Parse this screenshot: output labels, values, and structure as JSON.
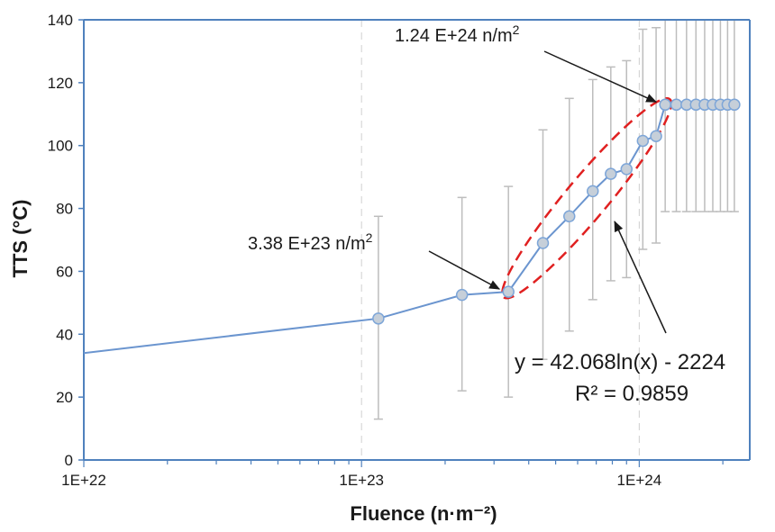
{
  "chart_data": {
    "type": "line",
    "xscale": "log",
    "xlim": [
      "1E+22",
      "2.5E+24"
    ],
    "ylim": [
      0,
      140
    ],
    "xlabel": "Fluence (n·m⁻²)",
    "ylabel": "TTS (°C)",
    "xticks": [
      "1E+22",
      "1E+23",
      "1E+24"
    ],
    "yticks": [
      0,
      20,
      40,
      60,
      80,
      100,
      120,
      140
    ],
    "grid": "vertical dashed at decades",
    "colors": {
      "line": "#6b95cf",
      "marker_fill": "#c6cfd9",
      "marker_edge": "#7ea6d8",
      "error_bar": "#bdbdbd",
      "ellipse": "#e02020",
      "axis": "#4f81bd"
    },
    "series": [
      {
        "x": [
          "1E+22",
          "1.15E+23",
          "2.3E+23",
          "3.38E+23",
          "4.5E+23",
          "5.6E+23",
          "6.8E+23",
          "7.9E+23",
          "9.0E+23",
          "1.03E+24",
          "1.15E+24",
          "1.24E+24",
          "1.36E+24",
          "1.48E+24",
          "1.6E+24",
          "1.72E+24",
          "1.84E+24",
          "1.96E+24",
          "2.08E+24",
          "2.2E+24"
        ],
        "y": [
          34,
          45,
          52.5,
          53.5,
          69,
          77.5,
          85.5,
          91,
          92.5,
          101.5,
          103,
          113,
          113,
          113,
          113,
          113,
          113,
          113,
          113,
          113
        ],
        "error_low": [
          null,
          13,
          22,
          20,
          32,
          41,
          51,
          57,
          58,
          67,
          69,
          79,
          79,
          79,
          79,
          79,
          79,
          79,
          79,
          79
        ],
        "error_high": [
          null,
          77.5,
          83.5,
          87,
          105,
          115,
          121,
          125,
          127,
          137,
          137.5,
          147,
          147,
          147,
          147,
          147,
          147,
          147,
          147,
          147
        ]
      }
    ],
    "annotations": {
      "low": "3.38 E+23 n/m²",
      "high": "1.24 E+24 n/m²",
      "fit_equation": "y = 42.068ln(x) - 2224",
      "fit_r2": "R² = 0.9859"
    }
  }
}
